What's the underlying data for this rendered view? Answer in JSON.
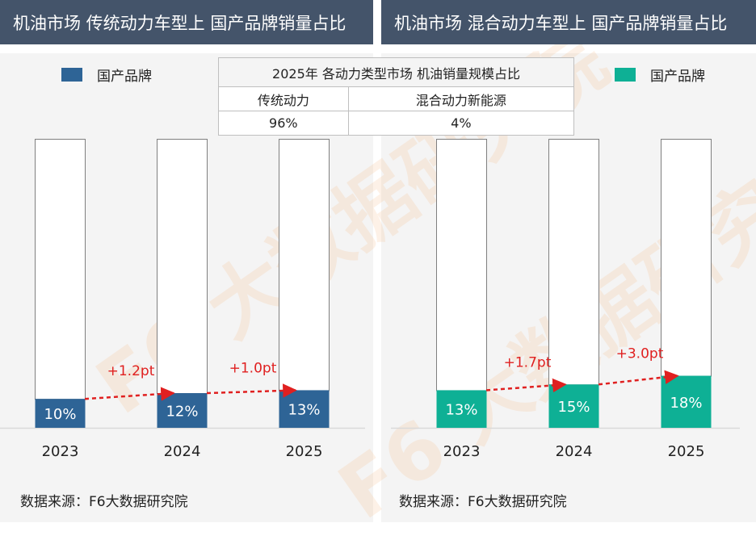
{
  "headers": {
    "left": "机油市场 传统动力车型上 国产品牌销量占比",
    "right": "机油市场 混合动力车型上 国产品牌销量占比"
  },
  "summary_table": {
    "title": "2025年 各动力类型市场 机油销量规模占比",
    "columns": [
      "传统动力",
      "混合动力新能源"
    ],
    "values": [
      "96%",
      "4%"
    ]
  },
  "source_left": "数据来源：F6大数据研究院",
  "source_right": "数据来源：F6大数据研究院",
  "watermark": "F6 大数据研究院",
  "colors": {
    "header_bg": "#44546a",
    "traditional": "#2e6496",
    "hybrid": "#0eb095",
    "arrow": "#e02020",
    "delta_text": "#e02020"
  },
  "chart_data": [
    {
      "type": "bar",
      "title": "机油市场 传统动力车型上 国产品牌销量占比",
      "categories": [
        "2023",
        "2024",
        "2025"
      ],
      "series": [
        {
          "name": "国产品牌",
          "values": [
            10,
            12,
            13
          ],
          "color": "#2e6496"
        }
      ],
      "data_labels": [
        "10%",
        "12%",
        "13%"
      ],
      "deltas": [
        "+1.2pt",
        "+1.0pt"
      ],
      "ylim": [
        0,
        100
      ],
      "stacked_remainder_shown": true,
      "legend": "top-left"
    },
    {
      "type": "bar",
      "title": "机油市场 混合动力车型上 国产品牌销量占比",
      "categories": [
        "2023",
        "2024",
        "2025"
      ],
      "series": [
        {
          "name": "国产品牌",
          "values": [
            13,
            15,
            18
          ],
          "color": "#0eb095"
        }
      ],
      "data_labels": [
        "13%",
        "15%",
        "18%"
      ],
      "deltas": [
        "+1.7pt",
        "+3.0pt"
      ],
      "ylim": [
        0,
        100
      ],
      "stacked_remainder_shown": true,
      "legend": "top-right"
    }
  ]
}
